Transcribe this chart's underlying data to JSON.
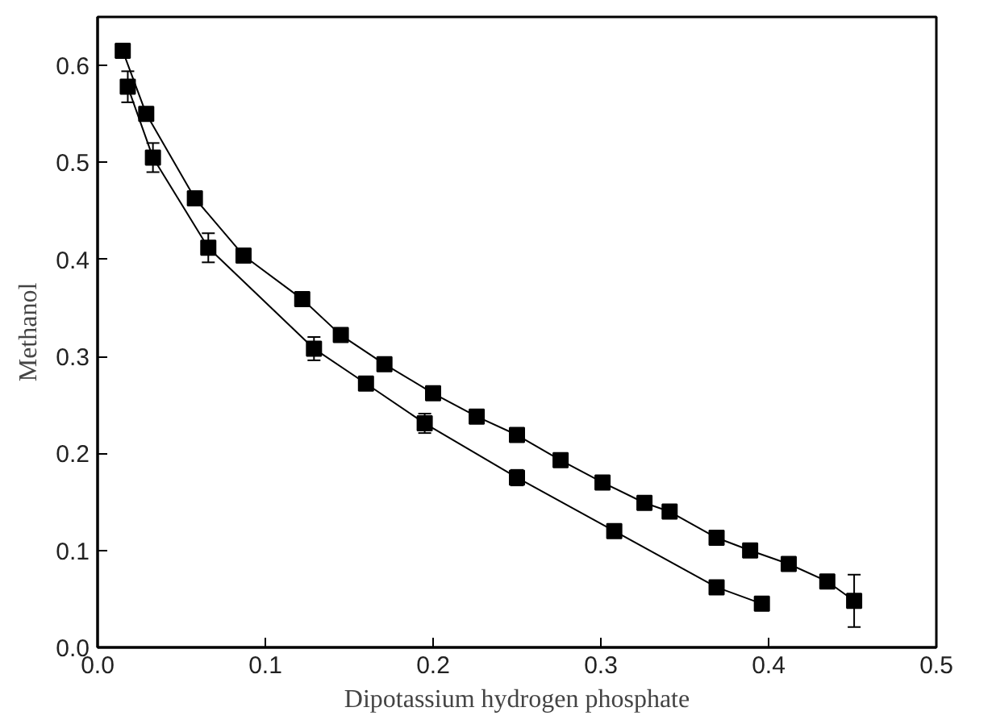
{
  "chart_data": {
    "type": "line",
    "xlabel": "Dipotassium hydrogen phosphate",
    "ylabel": "Methanol",
    "xlim": [
      0,
      0.5
    ],
    "ylim": [
      0,
      0.65
    ],
    "xticks": [
      {
        "value": 0,
        "label": "0.0"
      },
      0.1,
      0.2,
      0.3,
      0.4,
      0.5
    ],
    "yticks": [
      {
        "value": 0,
        "label": "0.0"
      },
      0.1,
      0.2,
      0.3,
      0.4,
      0.5,
      0.6
    ],
    "marker": "square",
    "line_style": "solid",
    "grid": false,
    "series": [
      {
        "color": "#000000",
        "x": [
          0.015,
          0.029,
          0.058,
          0.087,
          0.122,
          0.145,
          0.171,
          0.2,
          0.226,
          0.25,
          0.276,
          0.301,
          0.326,
          0.341,
          0.369,
          0.389,
          0.412,
          0.435,
          0.451
        ],
        "values": [
          0.615,
          0.55,
          0.463,
          0.404,
          0.359,
          0.322,
          0.292,
          0.262,
          0.238,
          0.219,
          0.193,
          0.17,
          0.149,
          0.14,
          0.113,
          0.1,
          0.086,
          0.068,
          0.048
        ],
        "errors": [
          null,
          null,
          null,
          null,
          null,
          null,
          null,
          null,
          null,
          null,
          null,
          null,
          null,
          null,
          null,
          null,
          null,
          null,
          0.027
        ]
      },
      {
        "color": "#000000",
        "x": [
          0.018,
          0.033,
          0.066,
          0.129,
          0.16,
          0.195,
          0.25,
          0.308,
          0.369,
          0.396
        ],
        "values": [
          0.578,
          0.505,
          0.412,
          0.308,
          0.272,
          0.231,
          0.175,
          0.12,
          0.062,
          0.045
        ],
        "errors": [
          0.016,
          0.015,
          0.015,
          0.012,
          null,
          0.01,
          0.008,
          null,
          null,
          null
        ]
      }
    ]
  }
}
